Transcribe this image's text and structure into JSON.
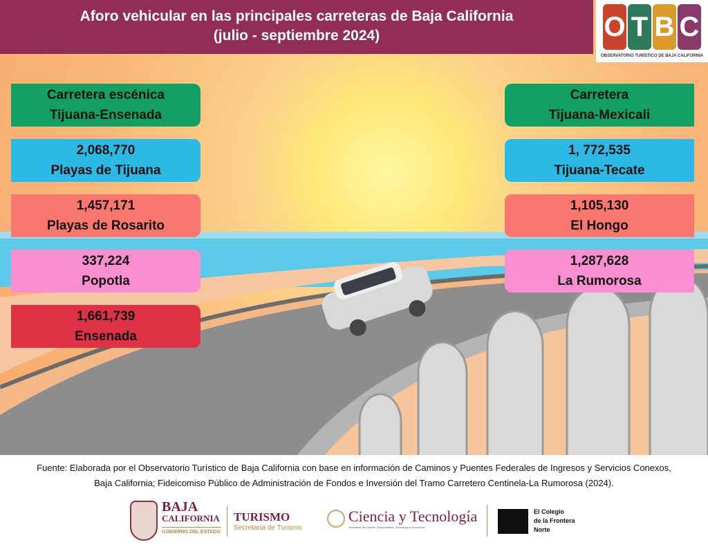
{
  "header": {
    "title_line1": "Aforo vehicular en las principales carreteras de Baja California",
    "title_line2": "(julio - septiembre 2024)"
  },
  "logo": {
    "letters": [
      "O",
      "T",
      "B",
      "C"
    ],
    "caption": "OBSERVATORIO TURÍSTICO DE BAJA CALIFORNIA"
  },
  "left": {
    "heading1": "Carretera escénica",
    "heading2": "Tijuana-Ensenada",
    "items": [
      {
        "value": "2,068,770",
        "name": "Playas de Tijuana"
      },
      {
        "value": "1,457,171",
        "name": "Playas de Rosarito"
      },
      {
        "value": "337,224",
        "name": "Popotla"
      },
      {
        "value": "1,661,739",
        "name": "Ensenada"
      }
    ]
  },
  "right": {
    "heading1": "Carretera",
    "heading2": "Tijuana-Mexicali",
    "items": [
      {
        "value": "1, 772,535",
        "name": "Tijuana-Tecate"
      },
      {
        "value": "1,105,130",
        "name": "El Hongo"
      },
      {
        "value": "1,287,628",
        "name": "La Rumorosa"
      }
    ]
  },
  "colors": {
    "green": "#12a064",
    "cyan": "#2cb9e6",
    "salmon": "#f9776f",
    "pink": "#f98ed0",
    "red": "#e03247",
    "header": "#922d56"
  },
  "footer": {
    "line1": "Fuente: Elaborada por el Observatorio Turístico de Baja California con base en información de Caminos y Puentes Federales de Ingresos y Servicios Conexos,",
    "line2": "Baja California; Fideicomiso Público de Administración de Fondos e Inversión del Tramo Carretero Centinela-La Rumorosa (2024)."
  },
  "sponsors": {
    "bc1": "BAJA",
    "bc2": "CALIFORNIA",
    "bc3": "GOBIERNO DEL ESTADO",
    "tur1": "TURISMO",
    "tur2": "Secretaría de Turismo",
    "cyt1": "Ciencia y Tecnología",
    "cyt2": "Secretaría de Ciencia, Humanidades, Tecnología e Innovación",
    "col1": "El Colegio",
    "col2": "de la Frontera",
    "col3": "Norte"
  }
}
